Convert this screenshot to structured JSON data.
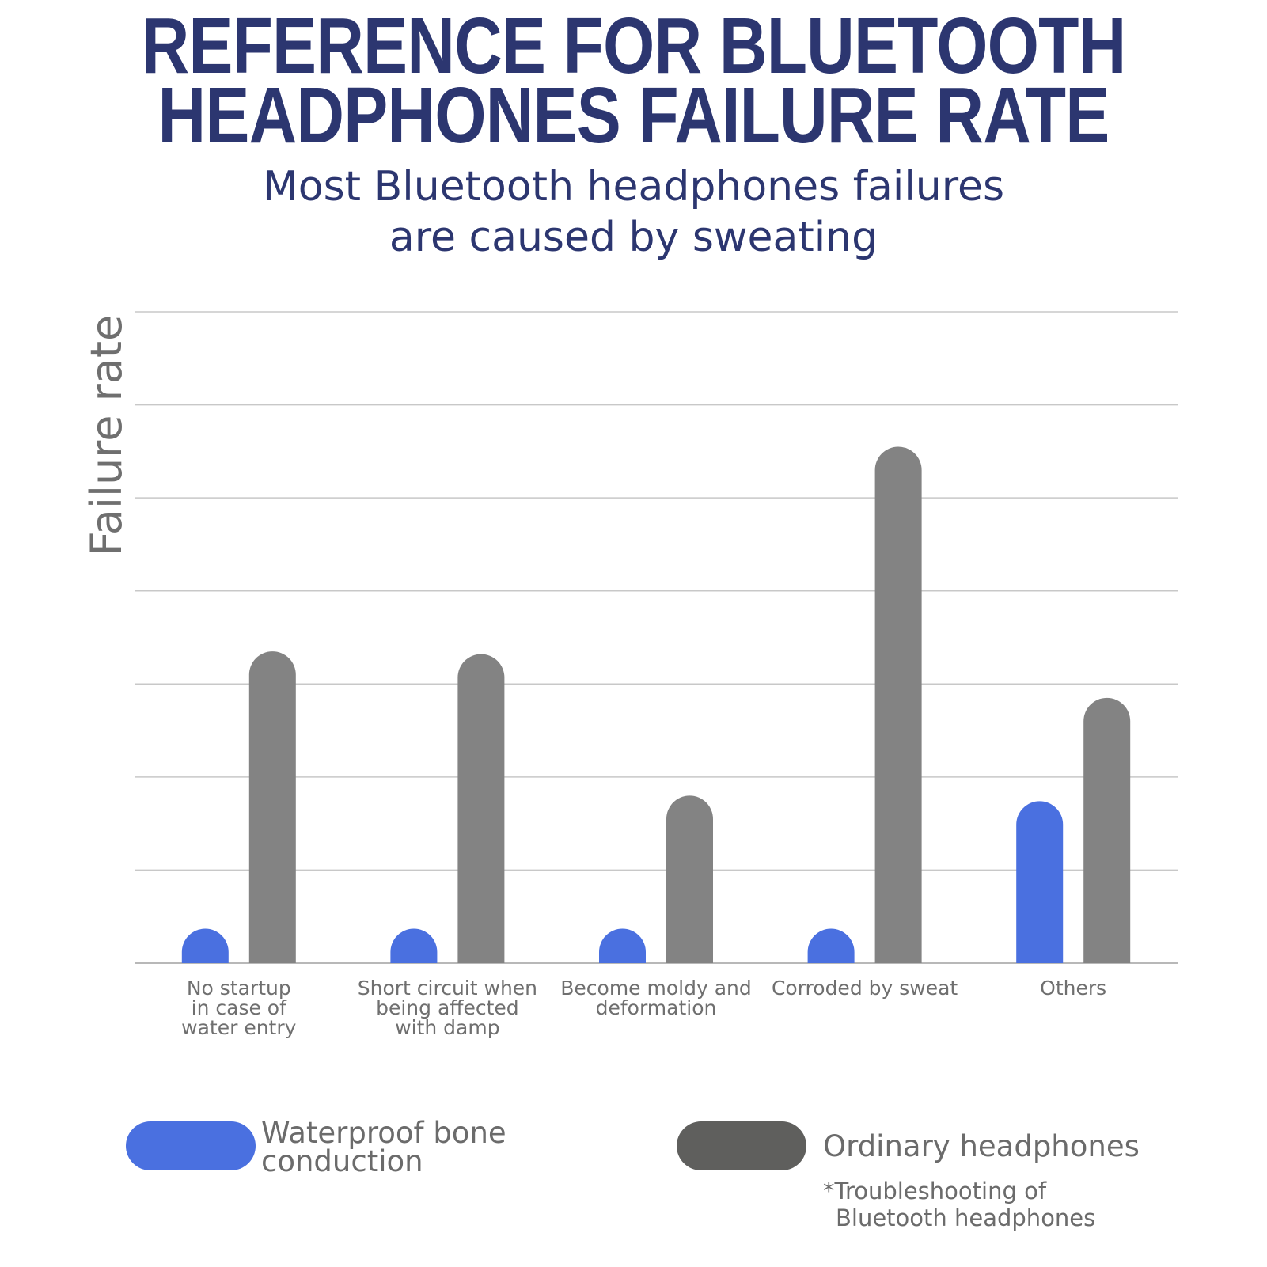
{
  "title": {
    "line1": "REFERENCE FOR BLUETOOTH",
    "line2": "HEADPHONES FAILURE RATE"
  },
  "subtitle": {
    "line1": "Most Bluetooth headphones failures",
    "line2": "are caused by sweating"
  },
  "colors": {
    "title": "#2c3670",
    "waterproof": "#4a70e0",
    "ordinary_bar": "#838383",
    "ordinary_swatch": "#5f5f5d",
    "grid": "#c8c8c8",
    "axis_text": "#6f6f6f"
  },
  "chart_data": {
    "type": "bar",
    "ylabel": "Failure rate",
    "xlabel": "",
    "ylim": [
      0,
      7
    ],
    "grid": true,
    "y_ticks_shown": false,
    "legend_position": "bottom",
    "categories": [
      [
        "No startup",
        "in case of",
        "water entry"
      ],
      [
        "Short circuit when",
        "being affected",
        "with damp"
      ],
      [
        "Become moldy and",
        "deformation"
      ],
      [
        "Corroded by sweat"
      ],
      [
        "Others"
      ]
    ],
    "series": [
      {
        "name": "Waterproof bone conduction",
        "values": [
          0.37,
          0.37,
          0.37,
          0.37,
          1.74
        ]
      },
      {
        "name": "Ordinary headphones",
        "values": [
          3.35,
          3.32,
          1.8,
          5.55,
          2.85
        ]
      }
    ]
  },
  "legend": {
    "waterproof_line1": "Waterproof bone",
    "waterproof_line2": "conduction",
    "ordinary": "Ordinary headphones"
  },
  "footnote": {
    "line1": "*Troubleshooting of",
    "line2": "Bluetooth headphones"
  }
}
